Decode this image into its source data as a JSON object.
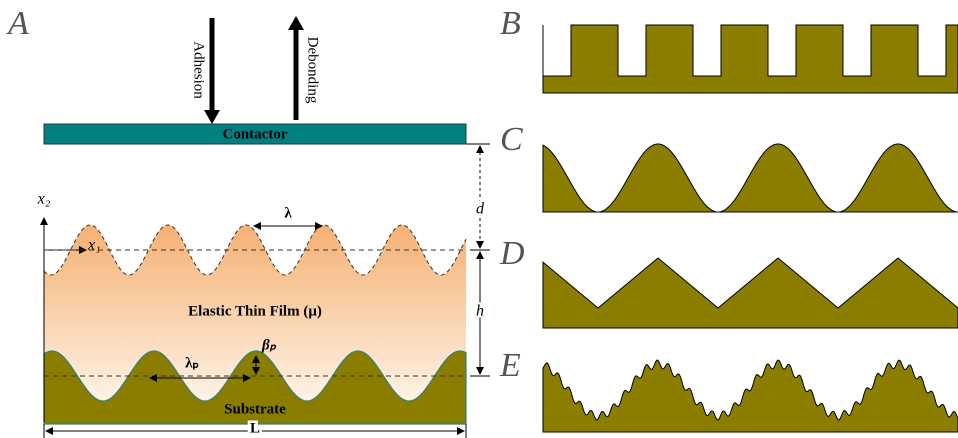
{
  "panels": {
    "a": "A",
    "b": "B",
    "c": "C",
    "d": "D",
    "e": "E"
  },
  "arrows": {
    "adhesion": "Adhesion",
    "debonding": "Debonding"
  },
  "contactor": "Contactor",
  "axes": {
    "x2": "x₂",
    "x1": "x₁"
  },
  "dimensions": {
    "wavelength": "λ",
    "gap": "d",
    "thickness": "h",
    "substrate_wavelength": "λₚ",
    "substrate_amplitude": "βₚ",
    "length": "L"
  },
  "film": "Elastic Thin Film (μ)",
  "substrate": "Substrate"
}
